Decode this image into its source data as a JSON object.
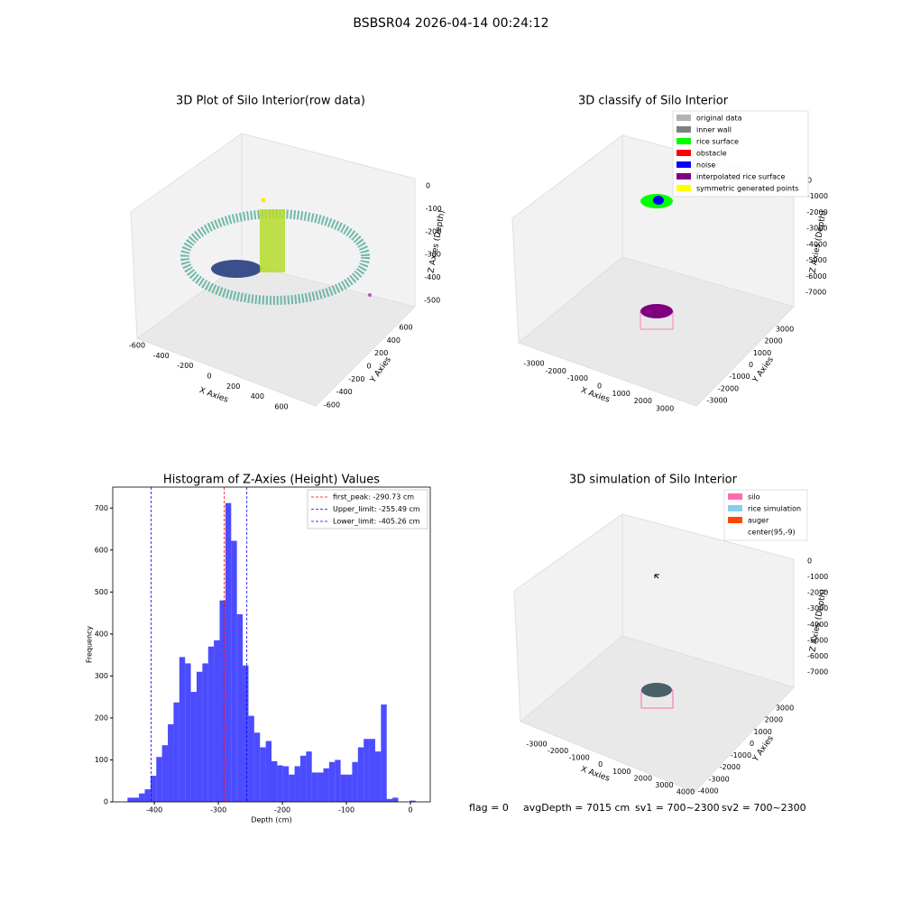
{
  "suptitle": "BSBSR04 2026-04-14 00:24:12",
  "chart_data": [
    {
      "type": "scatter3d",
      "title": "3D Plot of Silo Interior(row data)",
      "xlabel": "X Axies",
      "ylabel": "Y Axies",
      "zlabel": "Z Axies (Depth)",
      "xticks": [
        -600,
        -400,
        -200,
        0,
        200,
        400,
        600
      ],
      "yticks": [
        -600,
        -400,
        -200,
        0,
        200,
        400,
        600
      ],
      "zticks": [
        0,
        -100,
        -200,
        -300,
        -400,
        -500
      ]
    },
    {
      "type": "scatter3d",
      "title": "3D classify of Silo Interior",
      "xlabel": "X Axies",
      "ylabel": "Y Axies",
      "zlabel": "Z Axies (Depth)",
      "xticks": [
        -3000,
        -2000,
        -1000,
        0,
        1000,
        2000,
        3000
      ],
      "yticks": [
        -3000,
        -2000,
        -1000,
        0,
        1000,
        2000,
        3000
      ],
      "zticks": [
        0,
        -1000,
        -2000,
        -3000,
        -4000,
        -5000,
        -6000,
        -7000
      ],
      "legend": [
        {
          "label": "original data",
          "color": "#b3b3b3"
        },
        {
          "label": "inner wall",
          "color": "#808080"
        },
        {
          "label": "rice surface",
          "color": "#00ff00"
        },
        {
          "label": "obstacle",
          "color": "#ff0000"
        },
        {
          "label": "noise",
          "color": "#0000ff"
        },
        {
          "label": "interpolated rice surface",
          "color": "#800080"
        },
        {
          "label": "symmetric generated points",
          "color": "#ffff00"
        }
      ]
    },
    {
      "type": "histogram",
      "title": "Histogram of Z-Axies (Height) Values",
      "xlabel": "Depth (cm)",
      "ylabel": "Frequency",
      "color": "#0000ff",
      "bins": [
        -442,
        -433,
        -424,
        -415,
        -406,
        -397,
        -388,
        -379,
        -370,
        -361,
        -352,
        -343,
        -334,
        -325,
        -316,
        -307,
        -298,
        -289,
        -280,
        -271,
        -262,
        -253,
        -244,
        -235,
        -226,
        -217,
        -208,
        -199,
        -190,
        -181,
        -172,
        -163,
        -154,
        -145,
        -136,
        -127,
        -118,
        -109,
        -100,
        -91,
        -82,
        -73,
        -64,
        -55,
        -46,
        -37,
        -28,
        -19,
        -10,
        -1,
        8
      ],
      "values": [
        10,
        10,
        20,
        30,
        62,
        107,
        135,
        185,
        237,
        345,
        330,
        262,
        310,
        330,
        370,
        385,
        480,
        712,
        622,
        447,
        325,
        205,
        165,
        130,
        145,
        97,
        87,
        85,
        65,
        85,
        110,
        120,
        70,
        70,
        80,
        95,
        100,
        65,
        65,
        95,
        130,
        150,
        150,
        120,
        232,
        7,
        10,
        0,
        0,
        3
      ],
      "xlim": [
        -465,
        31
      ],
      "ylim": [
        0,
        750
      ],
      "xticks": [
        -400,
        -300,
        -200,
        -100,
        0
      ],
      "yticks": [
        0,
        100,
        200,
        300,
        400,
        500,
        600,
        700
      ],
      "vlines": [
        {
          "label": "first_peak: -290.73 cm",
          "value": -290.73,
          "color": "#ff0000"
        },
        {
          "label": "Upper_limit: -255.49 cm",
          "value": -255.49,
          "color": "#0000ff"
        },
        {
          "label": "Lower_limit: -405.26 cm",
          "value": -405.26,
          "color": "#0000ff"
        }
      ]
    },
    {
      "type": "scatter3d",
      "title": "3D simulation of Silo Interior",
      "xlabel": "X Axies",
      "ylabel": "Y Axies",
      "zlabel": "Z Axies (Depth)",
      "xticks": [
        -3000,
        -2000,
        -1000,
        0,
        1000,
        2000,
        3000,
        4000
      ],
      "yticks": [
        -4000,
        -3000,
        -2000,
        -1000,
        0,
        1000,
        2000,
        3000
      ],
      "zticks": [
        0,
        -1000,
        -2000,
        -3000,
        -4000,
        -5000,
        -6000,
        -7000
      ],
      "legend": [
        {
          "label": "silo",
          "color": "#ff69b4"
        },
        {
          "label": "rice simulation",
          "color": "#87ceeb"
        },
        {
          "label": "auger",
          "color": "#ff4500"
        },
        {
          "label": "center(95,-9)",
          "color": "none"
        }
      ]
    }
  ],
  "footer": {
    "flag": "flag = 0",
    "avg": "avgDepth = 7015 cm",
    "sv1": "sv1 = 700~2300",
    "sv2": "sv2 = 700~2300"
  }
}
